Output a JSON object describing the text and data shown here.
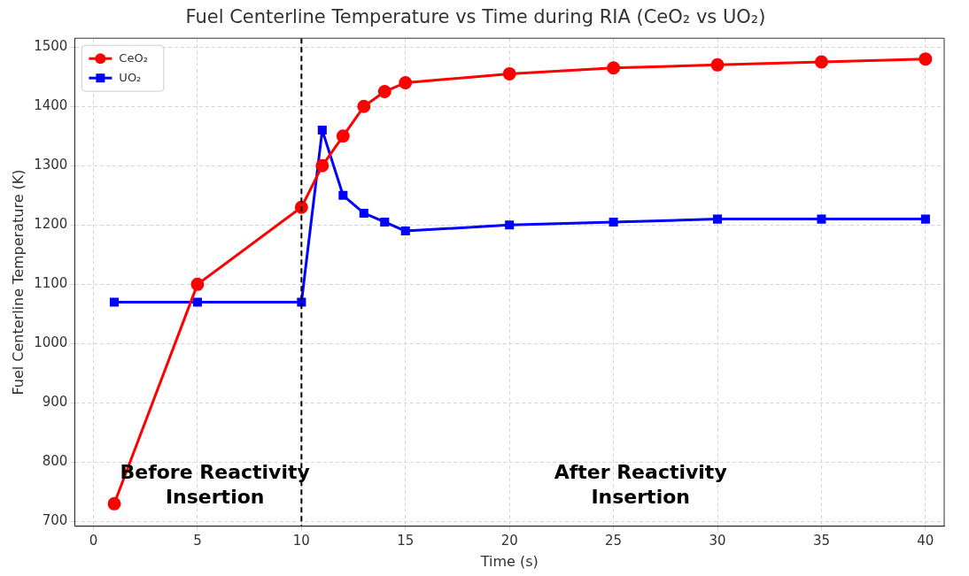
{
  "chart_data": {
    "type": "line",
    "title": "Fuel Centerline Temperature vs Time during RIA (CeO₂ vs UO₂)",
    "xlabel": "Time (s)",
    "ylabel": "Fuel Centerline Temperature (K)",
    "x": [
      1,
      5,
      10,
      11,
      12,
      13,
      14,
      15,
      20,
      25,
      30,
      35,
      40
    ],
    "series": [
      {
        "name": "CeO₂",
        "color": "#ff0000",
        "marker": "circle",
        "values": [
          730,
          1100,
          1230,
          1300,
          1350,
          1400,
          1425,
          1440,
          1455,
          1465,
          1470,
          1475,
          1480
        ]
      },
      {
        "name": "UO₂",
        "color": "#0000ff",
        "marker": "square",
        "values": [
          1070,
          1070,
          1070,
          1360,
          1250,
          1220,
          1205,
          1190,
          1200,
          1205,
          1210,
          1210,
          1210
        ]
      }
    ],
    "xlim": [
      -0.9,
      40.9
    ],
    "xticks": [
      0,
      5,
      10,
      15,
      20,
      25,
      30,
      35,
      40
    ],
    "ylim": [
      692,
      1515
    ],
    "yticks": [
      700,
      800,
      900,
      1000,
      1100,
      1200,
      1300,
      1400,
      1500
    ],
    "ref_lines": [
      {
        "axis": "x",
        "value": 10,
        "color": "#000000",
        "line_style": "dashed"
      }
    ],
    "annotations": [
      "Before Reactivity Insertion",
      "After Reactivity Insertion"
    ],
    "grid": true,
    "legend": "top left",
    "line_style": "solid"
  }
}
